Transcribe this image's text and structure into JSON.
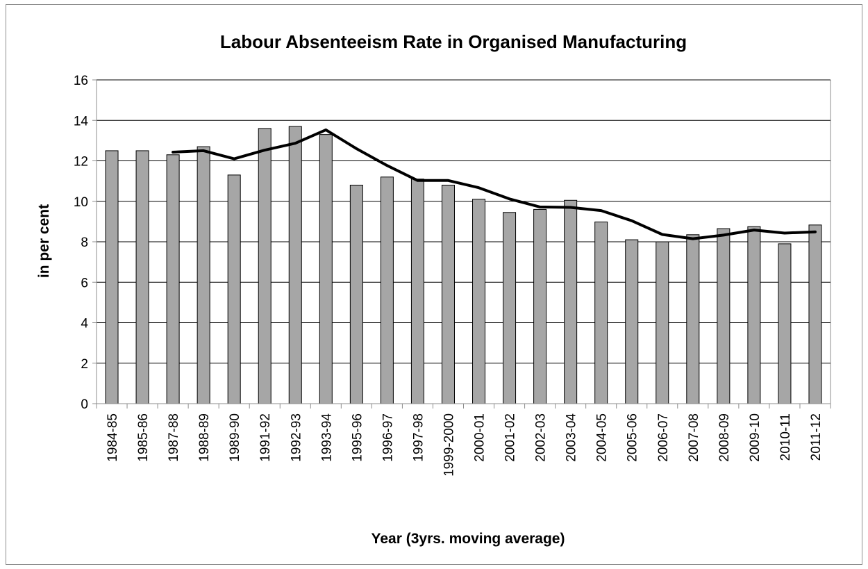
{
  "chart_data": {
    "type": "bar",
    "title": "Labour Absenteeism Rate in Organised Manufacturing",
    "xlabel": "Year (3yrs. moving average)",
    "ylabel": "in per cent",
    "ylim": [
      0,
      16
    ],
    "yticks": [
      0,
      2,
      4,
      6,
      8,
      10,
      12,
      14,
      16
    ],
    "grid": true,
    "categories": [
      "1984-85",
      "1985-86",
      "1987-88",
      "1988-89",
      "1989-90",
      "1991-92",
      "1992-93",
      "1993-94",
      "1995-96",
      "1996-97",
      "1997-98",
      "1999-2000",
      "2000-01",
      "2001-02",
      "2002-03",
      "2003-04",
      "2004-05",
      "2005-06",
      "2006-07",
      "2007-08",
      "2008-09",
      "2009-10",
      "2010-11",
      "2011-12"
    ],
    "series": [
      {
        "type": "bar",
        "values": [
          12.5,
          12.5,
          12.3,
          12.7,
          11.3,
          13.6,
          13.7,
          13.3,
          10.8,
          11.2,
          11.1,
          10.8,
          10.1,
          9.45,
          9.6,
          10.05,
          8.98,
          8.1,
          8.0,
          8.35,
          8.65,
          8.75,
          7.9,
          8.83
        ],
        "color": "#a6a6a6"
      },
      {
        "type": "line",
        "values": [
          null,
          null,
          12.43,
          12.5,
          12.1,
          12.53,
          12.87,
          13.53,
          12.6,
          11.77,
          11.03,
          11.03,
          10.67,
          10.12,
          9.72,
          9.7,
          9.54,
          9.04,
          8.36,
          8.15,
          8.33,
          8.58,
          8.43,
          8.49
        ],
        "color": "#000000"
      }
    ]
  }
}
